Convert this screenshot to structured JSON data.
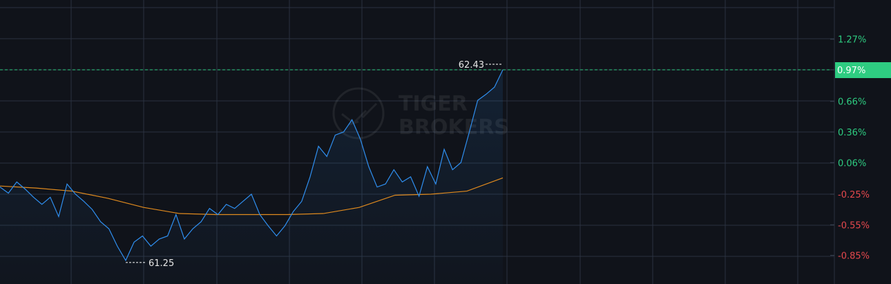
{
  "chart_data": {
    "type": "line",
    "title": "",
    "xlabel": "",
    "ylabel": "",
    "y_unit": "%",
    "ylim": [
      -1.05,
      1.57
    ],
    "grid": true,
    "y_ticks": [
      "1.27%",
      "0.97%",
      "0.66%",
      "0.36%",
      "0.06%",
      "-0.25%",
      "-0.55%",
      "-0.85%"
    ],
    "y_tick_values": [
      1.27,
      0.97,
      0.66,
      0.36,
      0.06,
      -0.25,
      -0.55,
      -0.85
    ],
    "current_value_label": "0.97%",
    "current_value": 0.97,
    "high_label": "62.43",
    "low_label": "61.25",
    "watermark": "TIGER BROKERS",
    "colors": {
      "price": "#2f8ff0",
      "average": "#e08a1e",
      "up": "#2ecc81",
      "down": "#e5484d",
      "current_badge": "#2ecc81",
      "grid": "#2a3240"
    },
    "series": [
      {
        "role": "price",
        "values": [
          -0.18,
          -0.24,
          -0.13,
          -0.2,
          -0.28,
          -0.35,
          -0.28,
          -0.47,
          -0.15,
          -0.25,
          -0.32,
          -0.4,
          -0.52,
          -0.59,
          -0.76,
          -0.9,
          -0.72,
          -0.66,
          -0.76,
          -0.69,
          -0.66,
          -0.45,
          -0.69,
          -0.59,
          -0.52,
          -0.39,
          -0.45,
          -0.35,
          -0.39,
          -0.32,
          -0.25,
          -0.45,
          -0.56,
          -0.66,
          -0.56,
          -0.42,
          -0.32,
          -0.08,
          0.22,
          0.12,
          0.33,
          0.36,
          0.48,
          0.29,
          0.02,
          -0.18,
          -0.15,
          -0.01,
          -0.13,
          -0.08,
          -0.27,
          0.02,
          -0.15,
          0.19,
          -0.01,
          0.06,
          0.36,
          0.67,
          0.73,
          0.8,
          0.97
        ]
      },
      {
        "role": "average",
        "values": [
          -0.17,
          -0.19,
          -0.22,
          -0.29,
          -0.38,
          -0.44,
          -0.45,
          -0.45,
          -0.45,
          -0.44,
          -0.38,
          -0.26,
          -0.25,
          -0.22,
          -0.09
        ]
      }
    ]
  }
}
